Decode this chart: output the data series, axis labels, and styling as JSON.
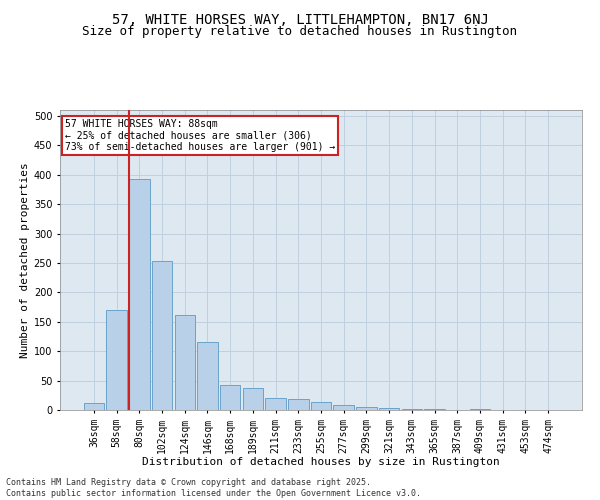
{
  "title_line1": "57, WHITE HORSES WAY, LITTLEHAMPTON, BN17 6NJ",
  "title_line2": "Size of property relative to detached houses in Rustington",
  "xlabel": "Distribution of detached houses by size in Rustington",
  "ylabel": "Number of detached properties",
  "categories": [
    "36sqm",
    "58sqm",
    "80sqm",
    "102sqm",
    "124sqm",
    "146sqm",
    "168sqm",
    "189sqm",
    "211sqm",
    "233sqm",
    "255sqm",
    "277sqm",
    "299sqm",
    "321sqm",
    "343sqm",
    "365sqm",
    "387sqm",
    "409sqm",
    "431sqm",
    "453sqm",
    "474sqm"
  ],
  "values": [
    12,
    170,
    393,
    253,
    162,
    115,
    43,
    37,
    20,
    18,
    14,
    8,
    5,
    4,
    2,
    1,
    0,
    1,
    0,
    0,
    0
  ],
  "bar_color": "#b8d0e8",
  "bar_edge_color": "#6ba3cc",
  "vline_color": "#cc2222",
  "annotation_box_text": "57 WHITE HORSES WAY: 88sqm\n← 25% of detached houses are smaller (306)\n73% of semi-detached houses are larger (901) →",
  "annotation_box_edge_color": "#cc2222",
  "ylim": [
    0,
    510
  ],
  "yticks": [
    0,
    50,
    100,
    150,
    200,
    250,
    300,
    350,
    400,
    450,
    500
  ],
  "grid_color": "#c0d0e0",
  "bg_color": "#dde8f0",
  "footnote": "Contains HM Land Registry data © Crown copyright and database right 2025.\nContains public sector information licensed under the Open Government Licence v3.0.",
  "title_fontsize": 10,
  "subtitle_fontsize": 9,
  "xlabel_fontsize": 8,
  "ylabel_fontsize": 8,
  "tick_fontsize": 7,
  "annot_fontsize": 7,
  "footnote_fontsize": 6
}
